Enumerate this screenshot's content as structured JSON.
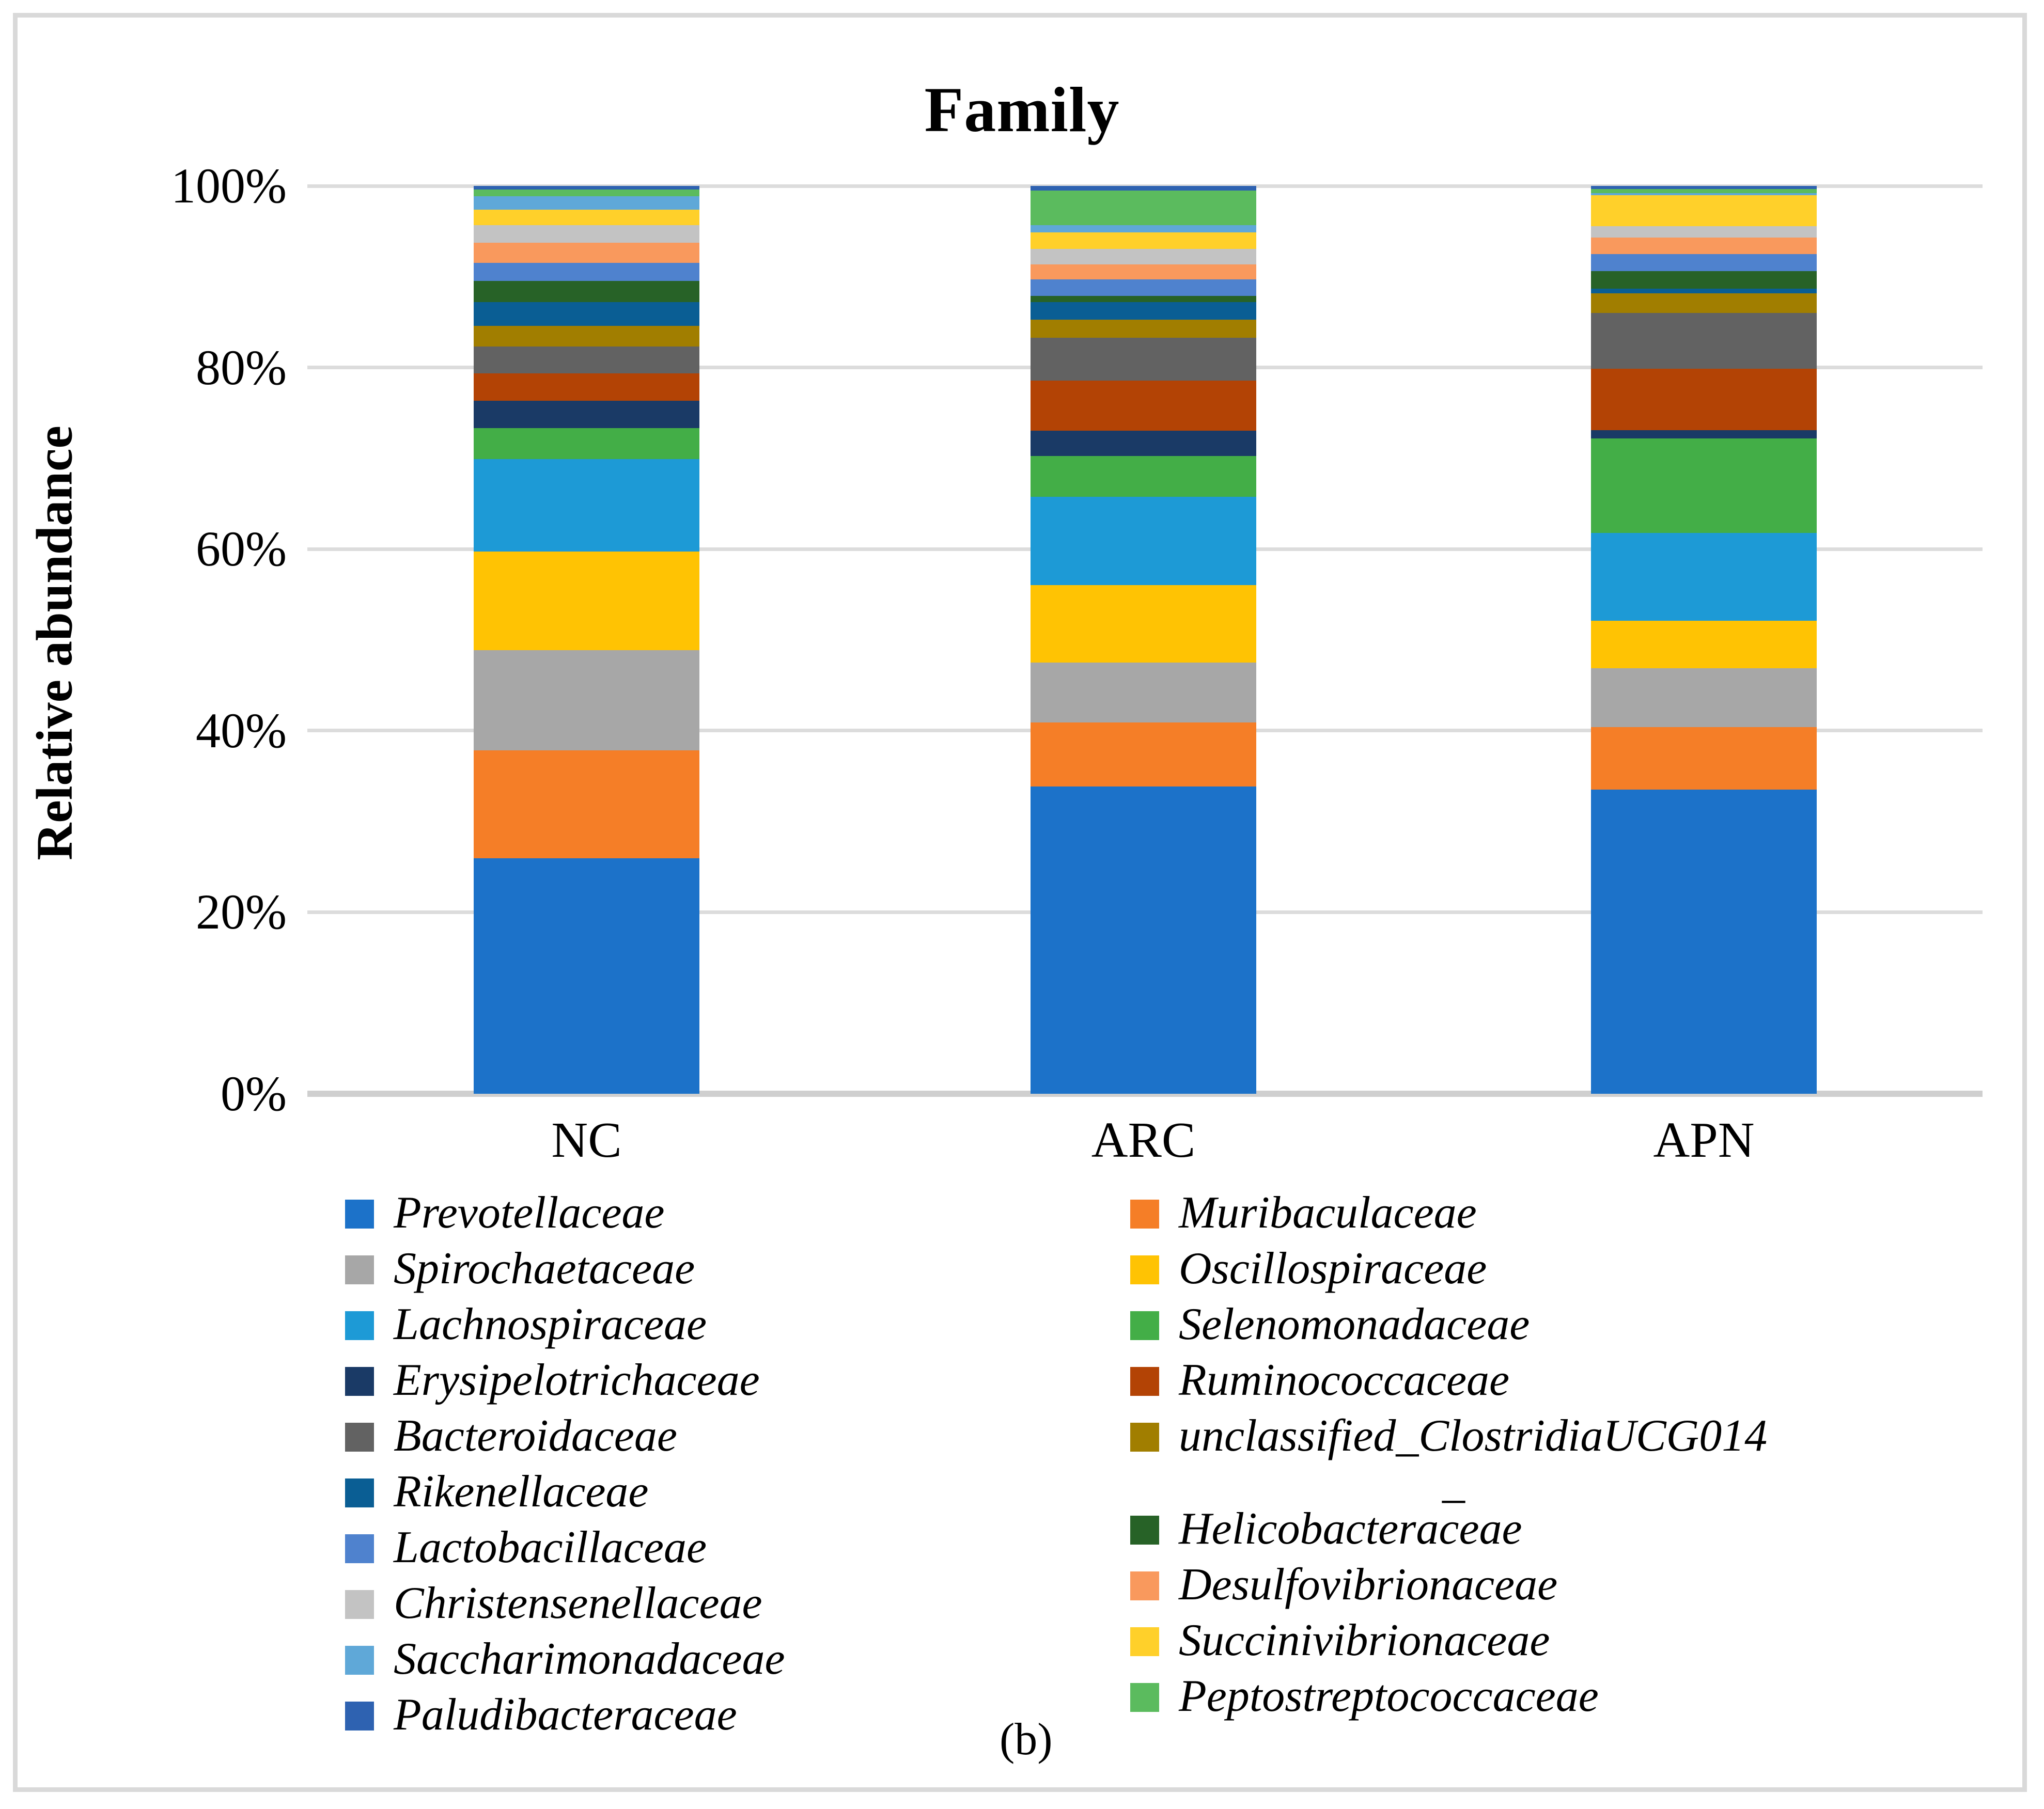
{
  "title": "Family",
  "caption": "(b)",
  "y_axis": {
    "label": "Relative abundance",
    "ticks_top_to_bottom": [
      "100%",
      "80%",
      "60%",
      "40%",
      "20%",
      "0%"
    ],
    "tick_values_top_to_bottom": [
      100,
      80,
      60,
      40,
      20,
      0
    ]
  },
  "categories": [
    "NC",
    "ARC",
    "APN"
  ],
  "legend": {
    "left_column": [
      "Prevotellaceae",
      "Spirochaetaceae",
      "Lachnospiraceae",
      "Erysipelotrichaceae",
      "Bacteroidaceae",
      "Rikenellaceae",
      "Lactobacillaceae",
      "Christensenellaceae",
      "Saccharimonadaceae",
      "Paludibacteraceae"
    ],
    "right_column": [
      "Muribaculaceae",
      "Oscillospiraceae",
      "Selenomonadaceae",
      "Ruminococcaceae",
      "unclassified_ClostridiaUCG014",
      "Helicobacteraceae",
      "Desulfovibrionaceae",
      "Succinivibrionaceae",
      "Peptostreptococcaceae"
    ],
    "wrapped_item": {
      "name": "unclassified_ClostridiaUCG014",
      "second_line": "_"
    }
  },
  "colors": {
    "grid": "#DCDCDC",
    "axis_line": "#CFCFCF",
    "frame": "#D9D9D9"
  },
  "chart_data": {
    "type": "bar",
    "stacked": true,
    "percent_stacked": true,
    "title": "Family",
    "xlabel": "",
    "ylabel": "Relative abundance",
    "ylim": [
      0,
      100
    ],
    "yticks": [
      "0%",
      "20%",
      "40%",
      "60%",
      "80%",
      "100%"
    ],
    "grid": true,
    "legend_position": "bottom, two columns, italic",
    "categories": [
      "NC",
      "ARC",
      "APN"
    ],
    "series_order": "bottom to top of stack",
    "series": [
      {
        "name": "Prevotellaceae",
        "color": "#1C72C9",
        "values": [
          25.8,
          33.8,
          33.5
        ]
      },
      {
        "name": "Muribaculaceae",
        "color": "#F57E27",
        "values": [
          11.8,
          7.0,
          6.9
        ]
      },
      {
        "name": "Spirochaetaceae",
        "color": "#A7A7A7",
        "values": [
          11.0,
          6.6,
          6.5
        ]
      },
      {
        "name": "Oscillospiraceae",
        "color": "#FFC303",
        "values": [
          10.8,
          8.5,
          5.2
        ]
      },
      {
        "name": "Lachnospiraceae",
        "color": "#1D9AD6",
        "values": [
          10.1,
          9.7,
          9.7
        ]
      },
      {
        "name": "Selenomonadaceae",
        "color": "#43AE47",
        "values": [
          3.4,
          4.5,
          10.4
        ]
      },
      {
        "name": "Erysipelotrichaceae",
        "color": "#1A3A66",
        "values": [
          3.0,
          2.8,
          0.9
        ]
      },
      {
        "name": "Ruminococcaceae",
        "color": "#B34305",
        "values": [
          3.0,
          5.5,
          6.8
        ]
      },
      {
        "name": "Bacteroidaceae",
        "color": "#626262",
        "values": [
          2.9,
          4.7,
          6.1
        ]
      },
      {
        "name": "unclassified_ClostridiaUCG014",
        "color": "#A17E00",
        "values": [
          2.3,
          2.0,
          2.2
        ]
      },
      {
        "name": "Rikenellaceae",
        "color": "#0A5E94",
        "values": [
          2.6,
          1.9,
          0.5
        ]
      },
      {
        "name": "Helicobacteraceae",
        "color": "#276227",
        "values": [
          2.3,
          0.7,
          1.9
        ]
      },
      {
        "name": "Lactobacillaceae",
        "color": "#4F82CE",
        "values": [
          2.0,
          1.8,
          1.9
        ]
      },
      {
        "name": "Desulfovibrionaceae",
        "color": "#F9995D",
        "values": [
          2.2,
          1.7,
          1.8
        ]
      },
      {
        "name": "Christensenellaceae",
        "color": "#C3C3C3",
        "values": [
          1.9,
          1.7,
          1.3
        ]
      },
      {
        "name": "Succinivibrionaceae",
        "color": "#FFD02A",
        "values": [
          1.7,
          1.8,
          3.4
        ]
      },
      {
        "name": "Saccharimonadaceae",
        "color": "#5FA8D8",
        "values": [
          1.5,
          0.8,
          0.2
        ]
      },
      {
        "name": "Peptostreptococcaceae",
        "color": "#5BBB5E",
        "values": [
          0.7,
          3.8,
          0.5
        ]
      },
      {
        "name": "Paludibacteraceae",
        "color": "#2E62B1",
        "values": [
          0.4,
          0.5,
          0.3
        ]
      }
    ]
  }
}
